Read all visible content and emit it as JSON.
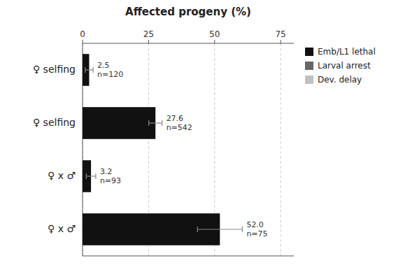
{
  "chart_data": {
    "type": "bar",
    "orientation": "horizontal",
    "title": "Affected progeny (%)",
    "categories": [
      "♀ selfing",
      "♀ selfing",
      "♀ x ♂",
      "♀ x ♂"
    ],
    "series": [
      {
        "name": "Emb/L1 lethal",
        "color": "#111111",
        "values": [
          2.5,
          27.6,
          3.2,
          52.0
        ],
        "errors": [
          1.5,
          2.5,
          1.8,
          8.5
        ],
        "value_labels": [
          "2.5\nn=120",
          "27.6\nn=542",
          "3.2\nn=93",
          "52.0\nn=75"
        ]
      },
      {
        "name": "Larval arrest",
        "color": "#666666",
        "values": [
          null,
          null,
          null,
          null
        ]
      },
      {
        "name": "Dev. delay",
        "color": "#c0c0c0",
        "values": [
          null,
          null,
          null,
          null
        ]
      }
    ],
    "xlim": [
      0,
      80
    ],
    "xticks": [
      0,
      25,
      50,
      75
    ],
    "grid": true,
    "legend": "upper right",
    "data_labels": true
  }
}
